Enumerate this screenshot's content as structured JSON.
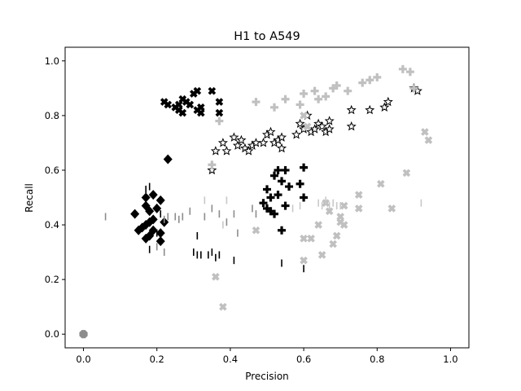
{
  "chart_data": {
    "type": "scatter",
    "title": "H1 to A549",
    "xlabel": "Precision",
    "ylabel": "Recall",
    "xlim": [
      -0.05,
      1.05
    ],
    "ylim": [
      -0.05,
      1.05
    ],
    "xticks": [
      "0.0",
      "0.2",
      "0.4",
      "0.6",
      "0.8",
      "1.0"
    ],
    "yticks": [
      "0.0",
      "0.2",
      "0.4",
      "0.6",
      "0.8",
      "1.0"
    ],
    "grid": false,
    "legend": "none",
    "series": [
      {
        "marker": "diamond",
        "color": "#000000",
        "points": [
          [
            0.14,
            0.44
          ],
          [
            0.15,
            0.38
          ],
          [
            0.16,
            0.39
          ],
          [
            0.17,
            0.35
          ],
          [
            0.17,
            0.4
          ],
          [
            0.17,
            0.47
          ],
          [
            0.17,
            0.5
          ],
          [
            0.18,
            0.36
          ],
          [
            0.18,
            0.41
          ],
          [
            0.18,
            0.45
          ],
          [
            0.19,
            0.38
          ],
          [
            0.19,
            0.42
          ],
          [
            0.19,
            0.51
          ],
          [
            0.2,
            0.46
          ],
          [
            0.21,
            0.37
          ],
          [
            0.21,
            0.34
          ],
          [
            0.21,
            0.49
          ],
          [
            0.22,
            0.41
          ],
          [
            0.23,
            0.64
          ]
        ]
      },
      {
        "marker": "x",
        "color": "#000000",
        "points": [
          [
            0.22,
            0.85
          ],
          [
            0.23,
            0.84
          ],
          [
            0.25,
            0.83
          ],
          [
            0.26,
            0.82
          ],
          [
            0.26,
            0.84
          ],
          [
            0.27,
            0.86
          ],
          [
            0.27,
            0.81
          ],
          [
            0.28,
            0.85
          ],
          [
            0.29,
            0.84
          ],
          [
            0.3,
            0.88
          ],
          [
            0.31,
            0.89
          ],
          [
            0.31,
            0.82
          ],
          [
            0.32,
            0.81
          ],
          [
            0.32,
            0.83
          ],
          [
            0.35,
            0.89
          ],
          [
            0.37,
            0.85
          ],
          [
            0.37,
            0.81
          ]
        ]
      },
      {
        "marker": "star",
        "color": "#000000",
        "points": [
          [
            0.35,
            0.6
          ],
          [
            0.36,
            0.67
          ],
          [
            0.38,
            0.7
          ],
          [
            0.39,
            0.67
          ],
          [
            0.41,
            0.72
          ],
          [
            0.42,
            0.69
          ],
          [
            0.43,
            0.71
          ],
          [
            0.44,
            0.68
          ],
          [
            0.45,
            0.67
          ],
          [
            0.46,
            0.69
          ],
          [
            0.47,
            0.7
          ],
          [
            0.49,
            0.7
          ],
          [
            0.5,
            0.73
          ],
          [
            0.51,
            0.74
          ],
          [
            0.52,
            0.7
          ],
          [
            0.53,
            0.71
          ],
          [
            0.54,
            0.72
          ],
          [
            0.54,
            0.68
          ],
          [
            0.58,
            0.73
          ],
          [
            0.59,
            0.77
          ],
          [
            0.6,
            0.75
          ],
          [
            0.61,
            0.8
          ],
          [
            0.62,
            0.74
          ],
          [
            0.63,
            0.75
          ],
          [
            0.64,
            0.77
          ],
          [
            0.65,
            0.76
          ],
          [
            0.66,
            0.74
          ],
          [
            0.67,
            0.75
          ],
          [
            0.67,
            0.78
          ],
          [
            0.73,
            0.76
          ],
          [
            0.73,
            0.82
          ],
          [
            0.78,
            0.82
          ],
          [
            0.82,
            0.83
          ],
          [
            0.83,
            0.85
          ],
          [
            0.9,
            0.9
          ],
          [
            0.91,
            0.89
          ]
        ]
      },
      {
        "marker": "plus",
        "color": "#000000",
        "points": [
          [
            0.49,
            0.48
          ],
          [
            0.5,
            0.53
          ],
          [
            0.5,
            0.46
          ],
          [
            0.51,
            0.5
          ],
          [
            0.51,
            0.45
          ],
          [
            0.52,
            0.58
          ],
          [
            0.52,
            0.44
          ],
          [
            0.53,
            0.51
          ],
          [
            0.53,
            0.6
          ],
          [
            0.54,
            0.56
          ],
          [
            0.54,
            0.38
          ],
          [
            0.55,
            0.6
          ],
          [
            0.55,
            0.47
          ],
          [
            0.56,
            0.54
          ],
          [
            0.59,
            0.55
          ],
          [
            0.6,
            0.5
          ],
          [
            0.6,
            0.61
          ]
        ]
      },
      {
        "marker": "plus",
        "color": "#c0c0c0",
        "points": [
          [
            0.35,
            0.62
          ],
          [
            0.37,
            0.78
          ],
          [
            0.47,
            0.85
          ],
          [
            0.52,
            0.83
          ],
          [
            0.55,
            0.86
          ],
          [
            0.59,
            0.84
          ],
          [
            0.6,
            0.88
          ],
          [
            0.63,
            0.89
          ],
          [
            0.64,
            0.86
          ],
          [
            0.66,
            0.87
          ],
          [
            0.68,
            0.9
          ],
          [
            0.69,
            0.91
          ],
          [
            0.72,
            0.89
          ],
          [
            0.76,
            0.92
          ],
          [
            0.78,
            0.93
          ],
          [
            0.8,
            0.94
          ],
          [
            0.87,
            0.97
          ],
          [
            0.89,
            0.96
          ],
          [
            0.9,
            0.9
          ]
        ]
      },
      {
        "marker": "x",
        "color": "#c0c0c0",
        "points": [
          [
            0.36,
            0.21
          ],
          [
            0.38,
            0.1
          ],
          [
            0.47,
            0.38
          ],
          [
            0.6,
            0.35
          ],
          [
            0.6,
            0.27
          ],
          [
            0.62,
            0.35
          ],
          [
            0.64,
            0.4
          ],
          [
            0.65,
            0.29
          ],
          [
            0.66,
            0.48
          ],
          [
            0.67,
            0.45
          ],
          [
            0.68,
            0.33
          ],
          [
            0.69,
            0.36
          ],
          [
            0.7,
            0.41
          ],
          [
            0.7,
            0.43
          ],
          [
            0.71,
            0.47
          ],
          [
            0.71,
            0.4
          ],
          [
            0.75,
            0.46
          ],
          [
            0.75,
            0.51
          ],
          [
            0.81,
            0.55
          ],
          [
            0.84,
            0.46
          ],
          [
            0.88,
            0.59
          ],
          [
            0.93,
            0.74
          ],
          [
            0.94,
            0.71
          ],
          [
            0.6,
            0.8
          ],
          [
            0.61,
            0.76
          ]
        ]
      },
      {
        "marker": "vline",
        "color": "#000000",
        "points": [
          [
            0.17,
            0.53
          ],
          [
            0.18,
            0.54
          ],
          [
            0.18,
            0.31
          ],
          [
            0.2,
            0.37
          ],
          [
            0.21,
            0.44
          ],
          [
            0.3,
            0.3
          ],
          [
            0.31,
            0.29
          ],
          [
            0.32,
            0.29
          ],
          [
            0.34,
            0.29
          ],
          [
            0.35,
            0.3
          ],
          [
            0.36,
            0.28
          ],
          [
            0.37,
            0.29
          ],
          [
            0.41,
            0.27
          ],
          [
            0.54,
            0.26
          ],
          [
            0.6,
            0.24
          ],
          [
            0.31,
            0.36
          ]
        ]
      },
      {
        "marker": "vline",
        "color": "#8c8c8c",
        "points": [
          [
            0.06,
            0.43
          ],
          [
            0.22,
            0.42
          ],
          [
            0.23,
            0.43
          ],
          [
            0.25,
            0.43
          ],
          [
            0.26,
            0.42
          ],
          [
            0.27,
            0.43
          ],
          [
            0.29,
            0.45
          ],
          [
            0.33,
            0.43
          ],
          [
            0.35,
            0.46
          ],
          [
            0.37,
            0.44
          ],
          [
            0.39,
            0.41
          ],
          [
            0.41,
            0.44
          ],
          [
            0.42,
            0.37
          ],
          [
            0.46,
            0.46
          ],
          [
            0.47,
            0.44
          ],
          [
            0.22,
            0.3
          ],
          [
            0.2,
            0.32
          ]
        ]
      },
      {
        "marker": "vline",
        "color": "#c8c8c8",
        "points": [
          [
            0.33,
            0.49
          ],
          [
            0.39,
            0.49
          ],
          [
            0.57,
            0.46
          ],
          [
            0.59,
            0.47
          ],
          [
            0.64,
            0.48
          ],
          [
            0.65,
            0.47
          ],
          [
            0.66,
            0.49
          ],
          [
            0.67,
            0.47
          ],
          [
            0.68,
            0.48
          ],
          [
            0.69,
            0.47
          ],
          [
            0.7,
            0.47
          ],
          [
            0.92,
            0.48
          ],
          [
            0.38,
            0.4
          ]
        ]
      },
      {
        "marker": "octagon",
        "color": "#8c8c8c",
        "points": [
          [
            0.0,
            0.0
          ]
        ]
      }
    ]
  }
}
